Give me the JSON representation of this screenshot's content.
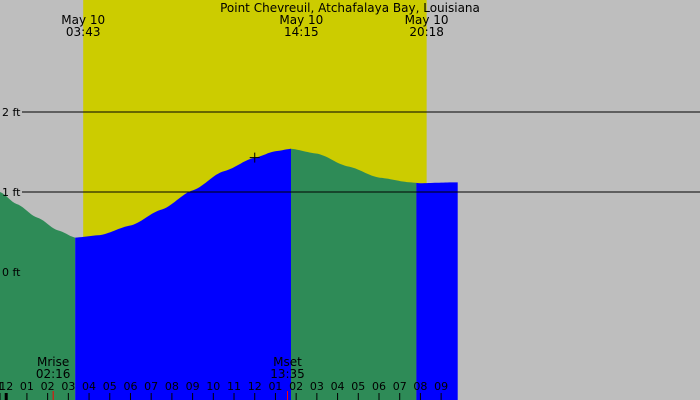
{
  "chart_data": {
    "type": "area",
    "title": "Point Chevreuil, Atchafalaya Bay, Louisiana",
    "x_unit": "hour",
    "xlim": [
      -0.3,
      33.5
    ],
    "ylim": [
      -1.6,
      3.4
    ],
    "y_ticks": [
      {
        "value": 0,
        "label": "0 ft"
      },
      {
        "value": 1,
        "label": "1 ft"
      },
      {
        "value": 2,
        "label": "2 ft"
      }
    ],
    "h_lines": [
      1,
      2
    ],
    "x_ticks": [
      {
        "h": -0.3,
        "label": "1"
      },
      {
        "h": 0,
        "label": "12"
      },
      {
        "h": 1,
        "label": "01"
      },
      {
        "h": 2,
        "label": "02"
      },
      {
        "h": 3,
        "label": "03"
      },
      {
        "h": 4,
        "label": "04"
      },
      {
        "h": 5,
        "label": "05"
      },
      {
        "h": 6,
        "label": "06"
      },
      {
        "h": 7,
        "label": "07"
      },
      {
        "h": 8,
        "label": "08"
      },
      {
        "h": 9,
        "label": "09"
      },
      {
        "h": 10,
        "label": "10"
      },
      {
        "h": 11,
        "label": "11"
      },
      {
        "h": 12,
        "label": "12"
      },
      {
        "h": 13,
        "label": "01"
      },
      {
        "h": 14,
        "label": "02"
      },
      {
        "h": 15,
        "label": "03"
      },
      {
        "h": 16,
        "label": "04"
      },
      {
        "h": 17,
        "label": "05"
      },
      {
        "h": 18,
        "label": "06"
      },
      {
        "h": 19,
        "label": "07"
      },
      {
        "h": 20,
        "label": "08"
      },
      {
        "h": 21,
        "label": "09"
      }
    ],
    "daylight": [
      3.717,
      20.3
    ],
    "colors": {
      "night": "#bebebe",
      "day": "#cccc00",
      "rising": "#0000ff",
      "falling": "#2e8b57",
      "line": "#000000",
      "marker": "#ff0000"
    },
    "tide": [
      {
        "h": -0.3,
        "ft": 1.0
      },
      {
        "h": 0.5,
        "ft": 0.85
      },
      {
        "h": 1.5,
        "ft": 0.68
      },
      {
        "h": 2.5,
        "ft": 0.52
      },
      {
        "h": 3.33,
        "ft": 0.43
      },
      {
        "h": 4.5,
        "ft": 0.46
      },
      {
        "h": 6.0,
        "ft": 0.58
      },
      {
        "h": 7.5,
        "ft": 0.78
      },
      {
        "h": 9.0,
        "ft": 1.02
      },
      {
        "h": 10.5,
        "ft": 1.26
      },
      {
        "h": 12.0,
        "ft": 1.43
      },
      {
        "h": 13.0,
        "ft": 1.51
      },
      {
        "h": 13.75,
        "ft": 1.54
      },
      {
        "h": 15.0,
        "ft": 1.48
      },
      {
        "h": 16.5,
        "ft": 1.32
      },
      {
        "h": 18.0,
        "ft": 1.18
      },
      {
        "h": 19.5,
        "ft": 1.12
      },
      {
        "h": 20.0,
        "ft": 1.11
      },
      {
        "h": 21.5,
        "ft": 1.12
      },
      {
        "h": 21.8,
        "ft": 1.12
      }
    ],
    "segments": [
      {
        "start": -0.3,
        "end": 3.33,
        "state": "falling"
      },
      {
        "start": 3.33,
        "end": 13.75,
        "state": "rising"
      },
      {
        "start": 13.75,
        "end": 19.8,
        "state": "falling"
      },
      {
        "start": 19.8,
        "end": 21.8,
        "state": "rising"
      }
    ],
    "top_labels": [
      {
        "h": 3.717,
        "date": "May 10",
        "time": "03:43"
      },
      {
        "h": 14.25,
        "date": "May 10",
        "time": "14:15"
      },
      {
        "h": 20.3,
        "date": "May 10",
        "time": "20:18"
      }
    ],
    "moon_events": [
      {
        "h": 2.267,
        "name": "Mrise",
        "time": "02:16"
      },
      {
        "h": 13.583,
        "name": "Mset",
        "time": "13:35"
      }
    ],
    "now_marker": {
      "h": 12.0,
      "ft": 1.43
    }
  }
}
